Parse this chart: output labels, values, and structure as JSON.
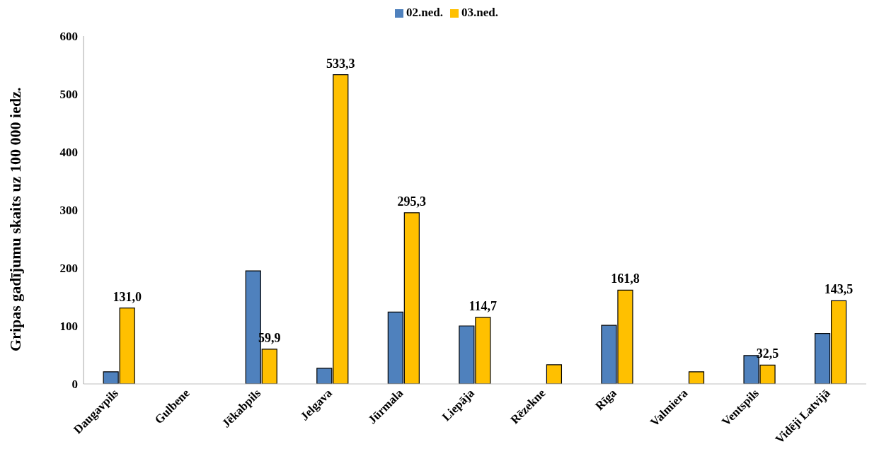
{
  "chart_data": {
    "type": "bar",
    "ylabel": "Gripas gadījumu skaits uz 100 000 iedz.",
    "categories": [
      "Daugavpils",
      "Gulbene",
      "Jēkabpils",
      "Jelgava",
      "Jūrmala",
      "Liepāja",
      "Rēzekne",
      "Rīga",
      "Valmiera",
      "Ventspils",
      "Vidēji Latvijā"
    ],
    "series": [
      {
        "name": "02.ned.",
        "color": "#4f81bd",
        "values": [
          21,
          null,
          195,
          27,
          124,
          100,
          null,
          101,
          null,
          49,
          87
        ]
      },
      {
        "name": "03.ned.",
        "color": "#ffc000",
        "values": [
          131.0,
          null,
          59.9,
          533.3,
          295.3,
          114.7,
          33,
          161.8,
          21,
          32.5,
          143.5
        ],
        "value_labels": [
          "131,0",
          null,
          "59,9",
          "533,3",
          "295,3",
          "114,7",
          null,
          "161,8",
          null,
          "32,5",
          "143,5"
        ]
      }
    ],
    "ylim": [
      0,
      600
    ],
    "yticks": [
      0,
      100,
      200,
      300,
      400,
      500,
      600
    ],
    "grid": false,
    "legend": "top"
  }
}
